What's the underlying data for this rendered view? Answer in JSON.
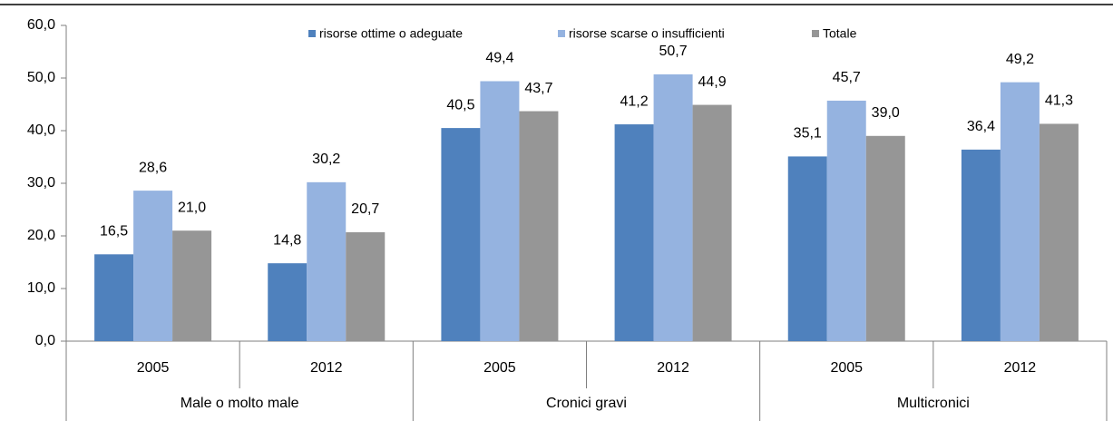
{
  "chart_data": {
    "type": "bar",
    "categories": [
      "2005",
      "2012",
      "2005",
      "2012",
      "2005",
      "2012"
    ],
    "groups": [
      "Male o molto male",
      "Cronici gravi",
      "Multicronici"
    ],
    "series": [
      {
        "name": "risorse ottime o adeguate",
        "color": "#4f81bd",
        "values": [
          16.5,
          14.8,
          40.5,
          41.2,
          35.1,
          36.4
        ],
        "value_labels": [
          "16,5",
          "14,8",
          "40,5",
          "41,2",
          "35,1",
          "36,4"
        ]
      },
      {
        "name": "risorse scarse o insufficienti",
        "color": "#95b3e0",
        "values": [
          28.6,
          30.2,
          49.4,
          50.7,
          45.7,
          49.2
        ],
        "value_labels": [
          "28,6",
          "30,2",
          "49,4",
          "50,7",
          "45,7",
          "49,2"
        ]
      },
      {
        "name": "Totale",
        "color": "#969696",
        "values": [
          21.0,
          20.7,
          43.7,
          44.9,
          39.0,
          41.3
        ],
        "value_labels": [
          "21,0",
          "20,7",
          "43,7",
          "44,9",
          "39,0",
          "41,3"
        ]
      }
    ],
    "ylim": [
      0,
      60
    ],
    "yticks": [
      {
        "value": 0,
        "label": "0,0"
      },
      {
        "value": 10,
        "label": "10,0"
      },
      {
        "value": 20,
        "label": "20,0"
      },
      {
        "value": 30,
        "label": "30,0"
      },
      {
        "value": 40,
        "label": "40,0"
      },
      {
        "value": 50,
        "label": "50,0"
      },
      {
        "value": 60,
        "label": "60,0"
      }
    ],
    "legend": "top"
  }
}
